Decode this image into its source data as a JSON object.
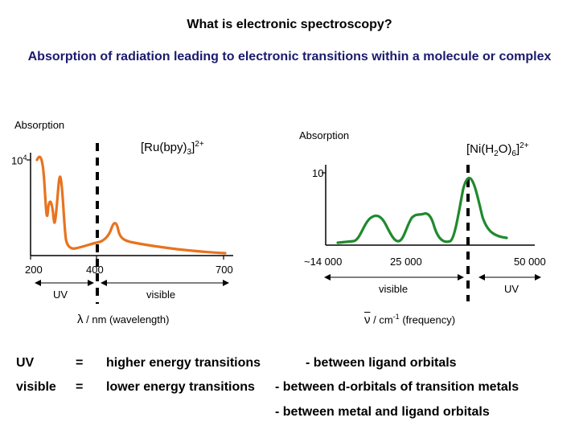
{
  "title": "What is electronic spectroscopy?",
  "subtitle": "Absorption of radiation leading to electronic transitions within a molecule or complex",
  "left_plot": {
    "ylabel": "Absorption",
    "y_tick": "10",
    "y_tick_exp": "4",
    "compound": {
      "a": "[Ru(bpy)",
      "sub": "3",
      "b": "]",
      "sup": "2+"
    },
    "x_ticks": [
      "200",
      "400",
      "700"
    ],
    "region_uv": "UV",
    "region_visible": "visible",
    "axis_symbol": "λ",
    "axis_caption": "/ nm (wavelength)",
    "line_color": "#e8731f"
  },
  "right_plot": {
    "ylabel": "Absorption",
    "y_tick": "10",
    "compound": {
      "a": "[Ni(H",
      "sub1": "2",
      "b": "O)",
      "sub2": "6",
      "c": "]",
      "sup": "2+"
    },
    "x_ticks": [
      "~14 000",
      "25 000",
      "50 000"
    ],
    "region_visible": "visible",
    "region_uv": "UV",
    "axis_symbol": "ν",
    "axis_caption": "/ cm",
    "axis_exp": "-1",
    "axis_caption2": " (frequency)",
    "line_color": "#1f8a2e"
  },
  "rows": [
    {
      "term": "UV",
      "eq": "=",
      "desc": "higher energy transitions",
      "detail": "- between ligand orbitals"
    },
    {
      "term": "visible",
      "eq": "=",
      "desc": "lower energy transitions",
      "detail": "- between d-orbitals of transition metals"
    },
    {
      "term": "",
      "eq": "",
      "desc": "",
      "detail": "- between metal and ligand orbitals"
    }
  ]
}
